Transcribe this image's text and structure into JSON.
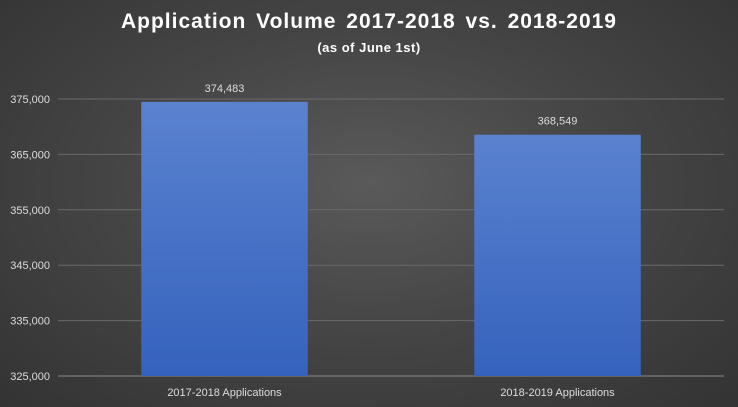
{
  "colors": {
    "bar_top": "#5a82cf",
    "bar_bottom": "#3562bd",
    "gridline": "#6a6a6a",
    "axis": "#8a8a8a"
  },
  "chart_data": {
    "type": "bar",
    "title": "Application  Volume  2017-2018  vs.  2018-2019",
    "subtitle": "(as of June 1st)",
    "categories": [
      "2017-2018 Applications",
      "2018-2019 Applications"
    ],
    "values": [
      374483,
      368549
    ],
    "data_labels": [
      "374,483",
      "368,549"
    ],
    "ylim": [
      325000,
      375000
    ],
    "yticks": [
      325000,
      335000,
      345000,
      355000,
      365000,
      375000
    ],
    "ytick_labels": [
      "325,000",
      "335,000",
      "345,000",
      "355,000",
      "365,000",
      "375,000"
    ],
    "grid": true,
    "legend": "none"
  }
}
